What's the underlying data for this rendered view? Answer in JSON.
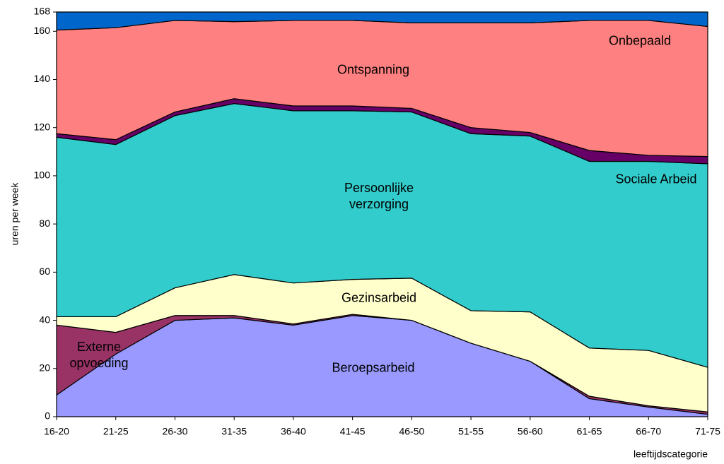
{
  "chart_data": {
    "type": "stacked-area",
    "xlabel": "leeftijdscategorie",
    "ylabel": "uren per week",
    "categories": [
      "16-20",
      "21-25",
      "26-30",
      "31-35",
      "36-40",
      "41-45",
      "46-50",
      "51-55",
      "56-60",
      "61-65",
      "66-70",
      "71-75"
    ],
    "ylim": [
      0,
      168
    ],
    "yticks": [
      0,
      20,
      40,
      60,
      80,
      100,
      120,
      140,
      160,
      168
    ],
    "series": [
      {
        "name": "Beroepsarbeid",
        "color": "#9999ff",
        "values": [
          9,
          26,
          40,
          41,
          38,
          42,
          40,
          30.5,
          23,
          7.5,
          4,
          1
        ]
      },
      {
        "name": "Externe opvoeding",
        "color": "#993366",
        "values": [
          29,
          9,
          2,
          1,
          0.5,
          0.5,
          0,
          0,
          0,
          1,
          0.5,
          1
        ]
      },
      {
        "name": "Gezinsarbeid",
        "color": "#ffffcc",
        "values": [
          3.5,
          6.5,
          11.5,
          17,
          17,
          14.5,
          17.5,
          13.5,
          20.5,
          20,
          23,
          18.5
        ]
      },
      {
        "name": "Persoonlijke verzorging",
        "color": "#33cccc",
        "values": [
          74.5,
          71.5,
          71.5,
          71,
          71.5,
          70,
          69,
          73.5,
          73,
          77.5,
          78.5,
          84.5
        ]
      },
      {
        "name": "Sociale Arbeid",
        "color": "#660066",
        "values": [
          1.5,
          2,
          1.5,
          2,
          2,
          2,
          1.5,
          2.5,
          1.5,
          4.5,
          2.5,
          3
        ]
      },
      {
        "name": "Ontspanning",
        "color": "#ff8080",
        "values": [
          43,
          46.5,
          38,
          32,
          35.5,
          35.5,
          35.5,
          43.5,
          45.5,
          54,
          56,
          54
        ]
      },
      {
        "name": "Onbepaald",
        "color": "#0066cc",
        "values": [
          7.5,
          6.5,
          3.5,
          4,
          3.5,
          3.5,
          4.5,
          4.5,
          4.5,
          3.5,
          3.5,
          6
        ]
      }
    ]
  }
}
